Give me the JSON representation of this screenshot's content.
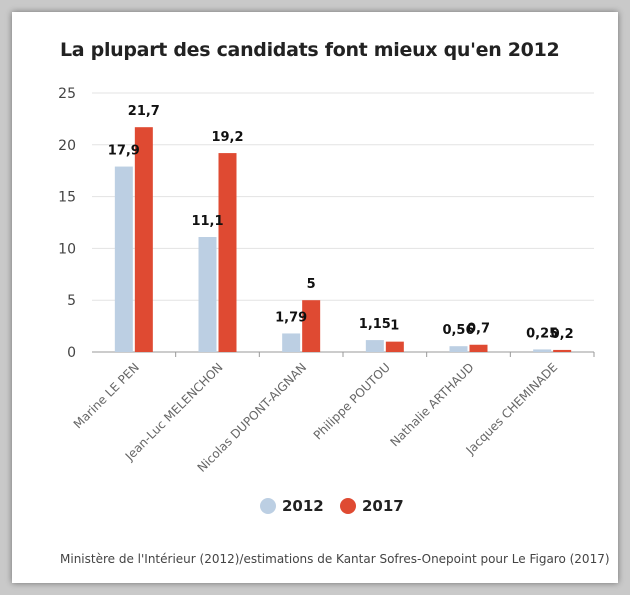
{
  "title": "La plupart des candidats font mieux qu'en 2012",
  "source": "Ministère de l'Intérieur (2012)/estimations de Kantar Sofres-Onepoint pour Le Figaro (2017)",
  "colors": {
    "s2012": "#bccfe3",
    "s2017": "#df4a32",
    "grid": "#e3e3e3",
    "axis": "#999999",
    "text": "#444444"
  },
  "chart_data": {
    "type": "bar",
    "title": "La plupart des candidats font mieux qu'en 2012",
    "categories": [
      "Marine LE PEN",
      "Jean-Luc MELENCHON",
      "Nicolas DUPONT-AIGNAN",
      "Philippe POUTOU",
      "Nathalie ARTHAUD",
      "Jacques CHEMINADE"
    ],
    "series": [
      {
        "name": "2012",
        "values": [
          17.9,
          11.1,
          1.79,
          1.15,
          0.56,
          0.25
        ],
        "labels": [
          "17,9",
          "11,1",
          "1,79",
          "1,15",
          "0,56",
          "0,25"
        ]
      },
      {
        "name": "2017",
        "values": [
          21.7,
          19.2,
          5,
          1,
          0.7,
          0.2
        ],
        "labels": [
          "21,7",
          "19,2",
          "5",
          "1",
          "0,7",
          "0,2"
        ]
      }
    ],
    "ylim": [
      0,
      25
    ],
    "yticks": [
      0,
      5,
      10,
      15,
      20,
      25
    ],
    "grid": true,
    "legend": "bottom-center"
  }
}
